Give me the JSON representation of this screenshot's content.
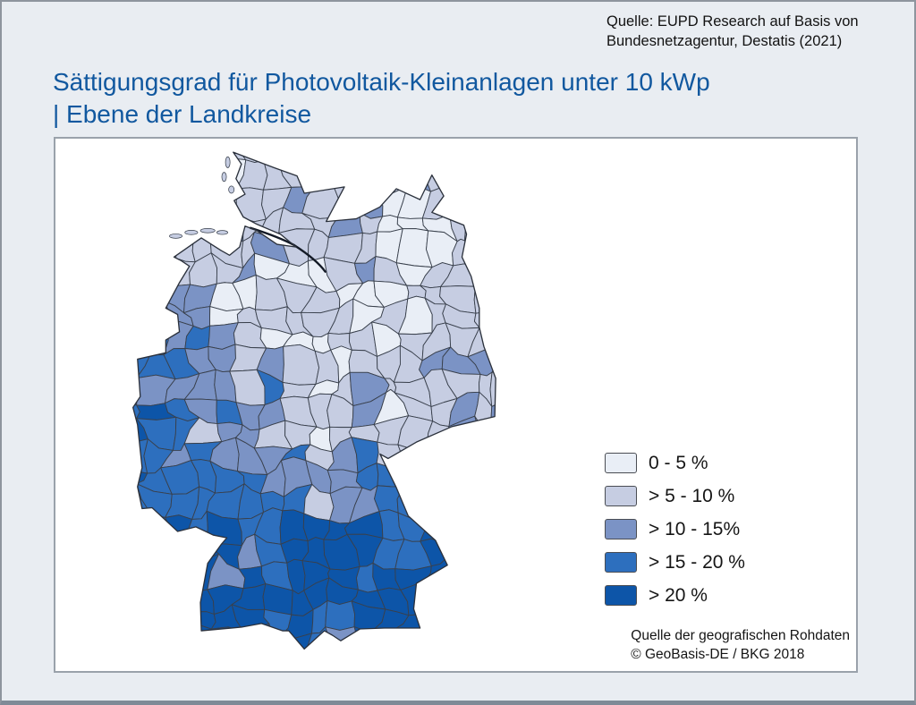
{
  "source_note": {
    "line1": "Quelle: EUPD Research auf Basis von",
    "line2": "Bundesnetzagentur, Destatis (2021)"
  },
  "title": {
    "line1": "Sättigungsgrad für Photovoltaik-Kleinanlagen unter 10 kWp",
    "line2": "| Ebene der Landkreise"
  },
  "map": {
    "legend": [
      {
        "label": "0 - 5 %",
        "color": "#e9eef6"
      },
      {
        "label": "> 5 - 10 %",
        "color": "#c6cde2"
      },
      {
        "label": "> 10 - 15%",
        "color": "#7b93c5"
      },
      {
        "label": "> 15 - 20 %",
        "color": "#2d6fbe"
      },
      {
        "label": "> 20 %",
        "color": "#0d55a8"
      }
    ],
    "geo_source": {
      "line1": "Quelle der geografischen Rohdaten",
      "line2": "© GeoBasis-DE / BKG 2018"
    },
    "colors": {
      "district_border": "#39404c",
      "country_outline": "#2b313c",
      "river": "#131a26",
      "panel_background": "#ffffff",
      "page_background": "#e9edf2",
      "title_blue": "#11589f"
    },
    "pattern_grid": [
      [
        2,
        2,
        2,
        2,
        2,
        2,
        2,
        2,
        2,
        2
      ],
      [
        2,
        2,
        2,
        2,
        2,
        2,
        2,
        1,
        2,
        2
      ],
      [
        2,
        2,
        2,
        2,
        1,
        2,
        2,
        1,
        2,
        2
      ],
      [
        3,
        3,
        2,
        2,
        2,
        2,
        1,
        2,
        2,
        2
      ],
      [
        3,
        3,
        3,
        2,
        2,
        2,
        2,
        2,
        2,
        2
      ],
      [
        4,
        3,
        3,
        3,
        2,
        2,
        2,
        2,
        2,
        2
      ],
      [
        5,
        4,
        3,
        3,
        2,
        2,
        2,
        2,
        3,
        3
      ],
      [
        4,
        4,
        3,
        3,
        3,
        3,
        3,
        3,
        3,
        3
      ],
      [
        4,
        4,
        3,
        4,
        4,
        3,
        4,
        4,
        4,
        4
      ],
      [
        4,
        5,
        5,
        4,
        5,
        5,
        5,
        4,
        5,
        5
      ],
      [
        5,
        5,
        4,
        5,
        5,
        5,
        4,
        5,
        5,
        5
      ],
      [
        5,
        5,
        5,
        5,
        5,
        4,
        5,
        5,
        5,
        5
      ]
    ]
  }
}
